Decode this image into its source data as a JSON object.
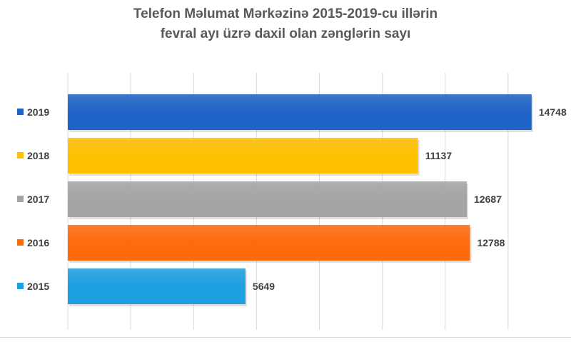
{
  "chart_data": {
    "type": "bar",
    "orientation": "horizontal",
    "title_line1": "Telefon Məlumat Mərkəzinə 2015-2019-cu illərin",
    "title_line2": "fevral ayı üzrə daxil olan zənglərin sayı",
    "categories": [
      "2019",
      "2018",
      "2017",
      "2016",
      "2015"
    ],
    "values": [
      14748,
      11137,
      12687,
      12788,
      5649
    ],
    "colors": [
      "#1F63C6",
      "#FFC000",
      "#A5A5A5",
      "#FF6A0D",
      "#1E9FE0"
    ],
    "xlim": [
      0,
      16000
    ],
    "grid": true,
    "legend": "left"
  }
}
